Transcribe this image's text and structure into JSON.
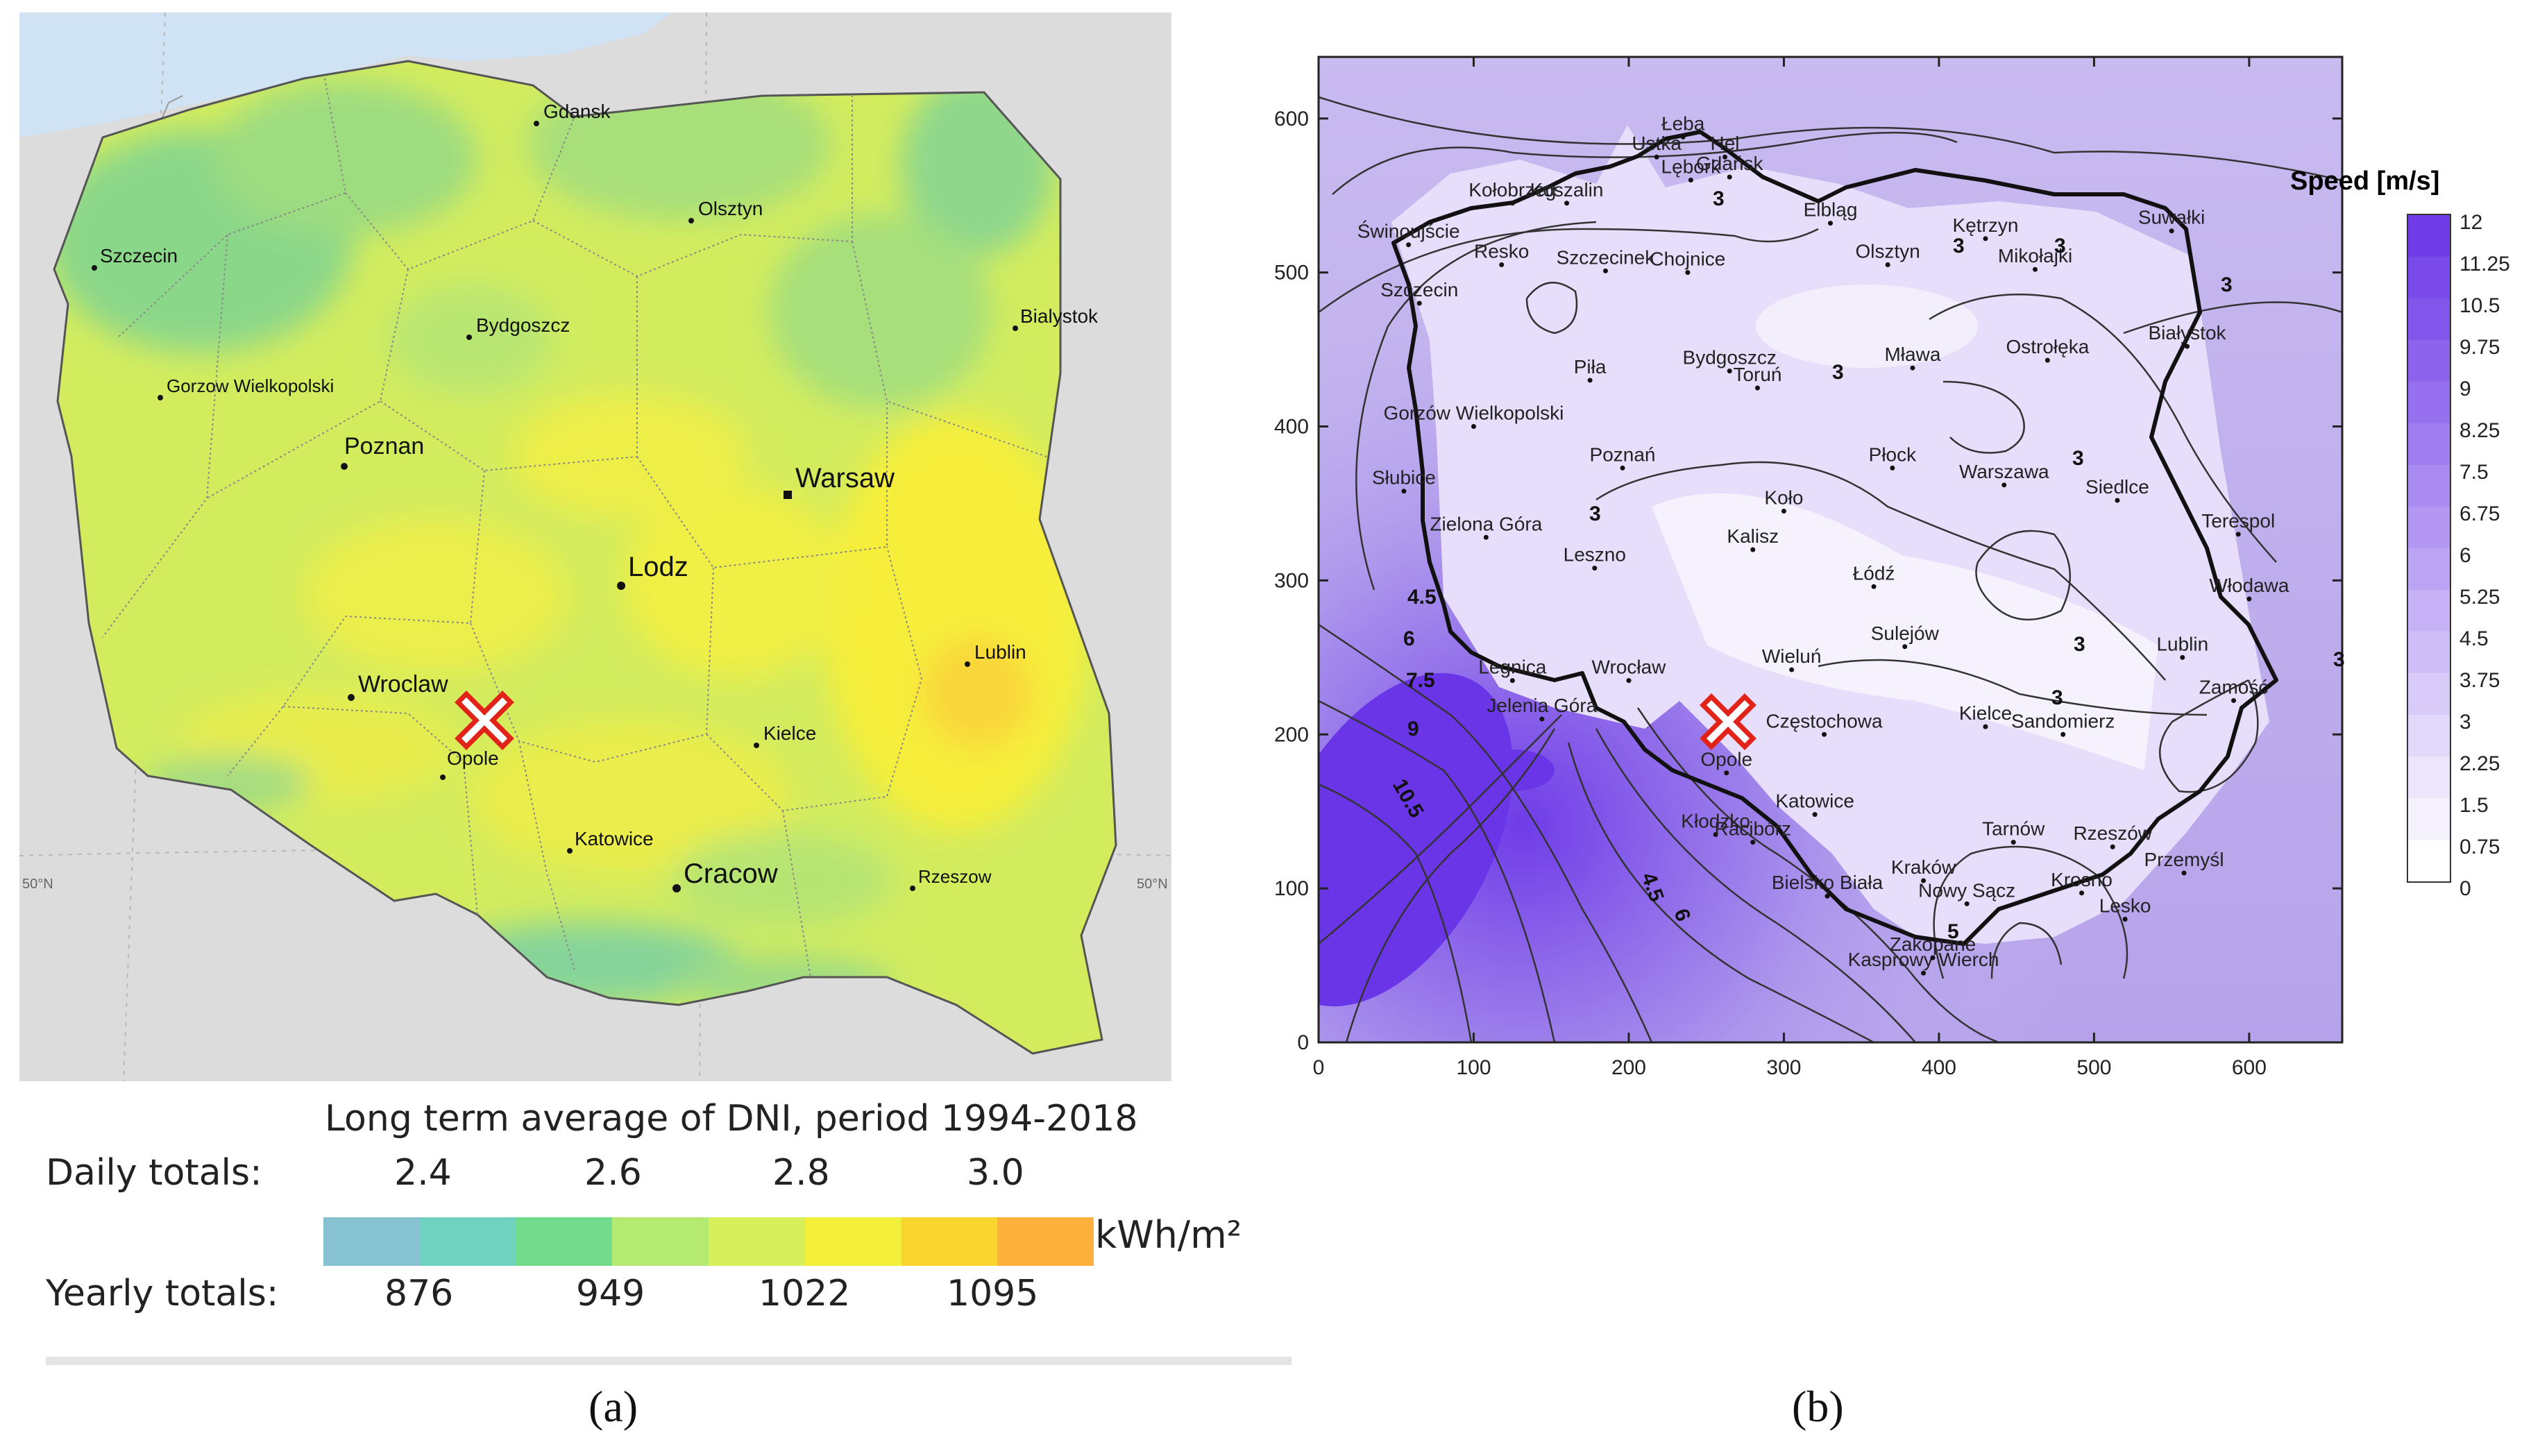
{
  "panel_a": {
    "sub_label": "(a)",
    "lat_label_left": "50°N",
    "lat_label_right": "50°N",
    "cities": [
      {
        "name": "Gdansk",
        "kind": "small"
      },
      {
        "name": "Olsztyn",
        "kind": "small"
      },
      {
        "name": "Szczecin",
        "kind": "small"
      },
      {
        "name": "Bialystok",
        "kind": "small"
      },
      {
        "name": "Bydgoszcz",
        "kind": "small"
      },
      {
        "name": "Gorzow Wielkopolski",
        "kind": "small"
      },
      {
        "name": "Poznan",
        "kind": "medium"
      },
      {
        "name": "Warsaw",
        "kind": "capital"
      },
      {
        "name": "Lodz",
        "kind": "large"
      },
      {
        "name": "Lublin",
        "kind": "small"
      },
      {
        "name": "Wroclaw",
        "kind": "medium"
      },
      {
        "name": "Opole",
        "kind": "small"
      },
      {
        "name": "Kielce",
        "kind": "small"
      },
      {
        "name": "Katowice",
        "kind": "small"
      },
      {
        "name": "Cracow",
        "kind": "large"
      },
      {
        "name": "Rzeszow",
        "kind": "small"
      }
    ],
    "marker": "red-x-site-marker",
    "legend": {
      "title": "Long term average of DNI, period 1994-2018",
      "daily_label": "Daily totals:",
      "daily_values": [
        "2.4",
        "2.6",
        "2.8",
        "3.0"
      ],
      "yearly_label": "Yearly totals:",
      "yearly_values": [
        "876",
        "949",
        "1022",
        "1095"
      ],
      "unit": "kWh/m²",
      "colors": [
        "#86c2d1",
        "#6fd3c0",
        "#73dc8c",
        "#b5ea70",
        "#d7ef5a",
        "#f4ef3b",
        "#fad52e",
        "#fbb13c"
      ]
    }
  },
  "panel_b": {
    "sub_label": "(b)",
    "x_ticks": [
      "0",
      "100",
      "200",
      "300",
      "400",
      "500",
      "600"
    ],
    "y_ticks": [
      "0",
      "100",
      "200",
      "300",
      "400",
      "500",
      "600"
    ],
    "x_range": [
      0,
      660
    ],
    "y_range": [
      0,
      640
    ],
    "colorbar": {
      "title": "Speed [m/s]",
      "ticks": [
        "12",
        "11.25",
        "10.5",
        "9.75",
        "9",
        "8.25",
        "7.5",
        "6.75",
        "6",
        "5.25",
        "4.5",
        "3.75",
        "3",
        "2.25",
        "1.5",
        "0.75",
        "0"
      ]
    },
    "contour_labels": [
      "3",
      "3",
      "3",
      "3",
      "3",
      "3",
      "3",
      "3",
      "3",
      "4.5",
      "6",
      "7.5",
      "9",
      "10.5",
      "4.5",
      "6",
      "5",
      "3"
    ],
    "cities": [
      {
        "name": "Łeba",
        "x": 235,
        "y": 588
      },
      {
        "name": "Hel",
        "x": 262,
        "y": 575
      },
      {
        "name": "Ustka",
        "x": 218,
        "y": 575
      },
      {
        "name": "Lębork",
        "x": 240,
        "y": 560
      },
      {
        "name": "Gdańsk",
        "x": 265,
        "y": 562
      },
      {
        "name": "Kołobrzeg",
        "x": 125,
        "y": 545
      },
      {
        "name": "Koszalin",
        "x": 160,
        "y": 545
      },
      {
        "name": "Elbląg",
        "x": 330,
        "y": 532
      },
      {
        "name": "Kętrzyn",
        "x": 430,
        "y": 522
      },
      {
        "name": "Suwałki",
        "x": 550,
        "y": 527
      },
      {
        "name": "Mikołajki",
        "x": 462,
        "y": 502
      },
      {
        "name": "Świnoujście",
        "x": 58,
        "y": 518
      },
      {
        "name": "Resko",
        "x": 118,
        "y": 505
      },
      {
        "name": "Szczecinek",
        "x": 185,
        "y": 501
      },
      {
        "name": "Chojnice",
        "x": 238,
        "y": 500
      },
      {
        "name": "Olsztyn",
        "x": 367,
        "y": 505
      },
      {
        "name": "Szczecin",
        "x": 65,
        "y": 480
      },
      {
        "name": "Białystok",
        "x": 560,
        "y": 452
      },
      {
        "name": "Piła",
        "x": 175,
        "y": 430
      },
      {
        "name": "Bydgoszcz",
        "x": 265,
        "y": 436
      },
      {
        "name": "Toruń",
        "x": 283,
        "y": 425
      },
      {
        "name": "Mława",
        "x": 383,
        "y": 438
      },
      {
        "name": "Ostrołęka",
        "x": 470,
        "y": 443
      },
      {
        "name": "Gorzów Wielkopolski",
        "x": 100,
        "y": 400
      },
      {
        "name": "Poznań",
        "x": 196,
        "y": 373
      },
      {
        "name": "Płock",
        "x": 370,
        "y": 373
      },
      {
        "name": "Warszawa",
        "x": 442,
        "y": 362
      },
      {
        "name": "Siedlce",
        "x": 515,
        "y": 352
      },
      {
        "name": "Słubice",
        "x": 55,
        "y": 358
      },
      {
        "name": "Koło",
        "x": 300,
        "y": 345
      },
      {
        "name": "Terespol",
        "x": 593,
        "y": 330
      },
      {
        "name": "Zielona Góra",
        "x": 108,
        "y": 328
      },
      {
        "name": "Kalisz",
        "x": 280,
        "y": 320
      },
      {
        "name": "Leszno",
        "x": 178,
        "y": 308
      },
      {
        "name": "Łódź",
        "x": 358,
        "y": 296
      },
      {
        "name": "Włodawa",
        "x": 600,
        "y": 288
      },
      {
        "name": "Lublin",
        "x": 557,
        "y": 250
      },
      {
        "name": "Wieluń",
        "x": 305,
        "y": 242
      },
      {
        "name": "Sulejów",
        "x": 378,
        "y": 257
      },
      {
        "name": "Legnica",
        "x": 125,
        "y": 235
      },
      {
        "name": "Wrocław",
        "x": 200,
        "y": 235
      },
      {
        "name": "Zamość",
        "x": 590,
        "y": 222
      },
      {
        "name": "Jelenia Góra",
        "x": 144,
        "y": 210
      },
      {
        "name": "Częstochowa",
        "x": 326,
        "y": 200
      },
      {
        "name": "Kielce",
        "x": 430,
        "y": 205
      },
      {
        "name": "Sandomierz",
        "x": 480,
        "y": 200
      },
      {
        "name": "Opole",
        "x": 263,
        "y": 175
      },
      {
        "name": "Katowice",
        "x": 320,
        "y": 148
      },
      {
        "name": "Kłodzko",
        "x": 256,
        "y": 135
      },
      {
        "name": "Racibórz",
        "x": 280,
        "y": 130
      },
      {
        "name": "Tarnów",
        "x": 448,
        "y": 130
      },
      {
        "name": "Rzeszów",
        "x": 512,
        "y": 127
      },
      {
        "name": "Przemyśl",
        "x": 558,
        "y": 110
      },
      {
        "name": "Kraków",
        "x": 390,
        "y": 105
      },
      {
        "name": "Krosno",
        "x": 492,
        "y": 97
      },
      {
        "name": "Nowy Sącz",
        "x": 418,
        "y": 90
      },
      {
        "name": "Bielsko Biała",
        "x": 328,
        "y": 95
      },
      {
        "name": "Lesko",
        "x": 520,
        "y": 80
      },
      {
        "name": "Kasprowy Wierch",
        "x": 390,
        "y": 45
      },
      {
        "name": "Zakopane",
        "x": 396,
        "y": 55
      }
    ]
  }
}
